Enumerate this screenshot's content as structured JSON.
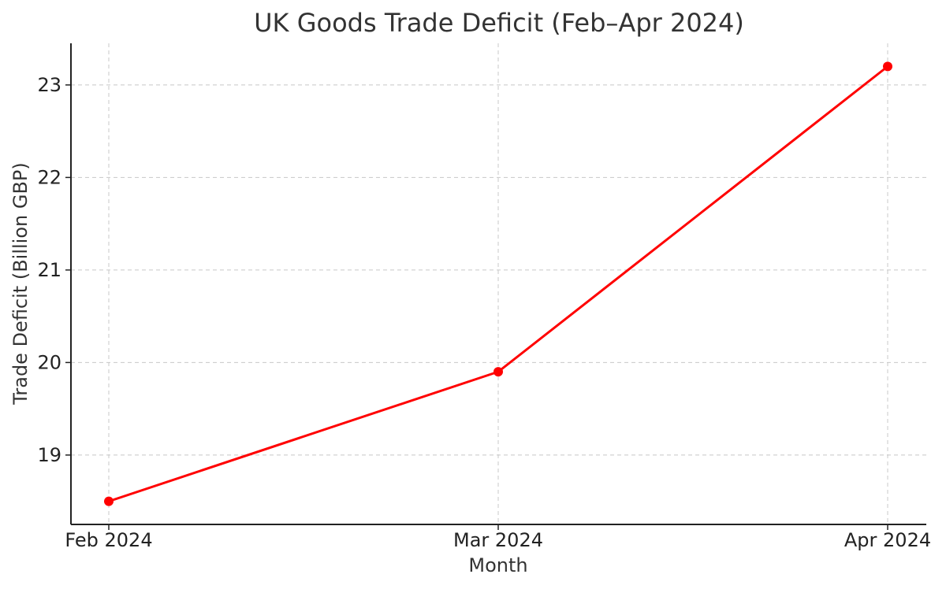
{
  "chart_data": {
    "type": "line",
    "title": "UK Goods Trade Deficit (Feb–Apr 2024)",
    "xlabel": "Month",
    "ylabel": "Trade Deficit (Billion GBP)",
    "categories": [
      "Feb 2024",
      "Mar 2024",
      "Apr 2024"
    ],
    "series": [
      {
        "values": [
          18.5,
          19.9,
          23.2
        ],
        "color": "#ff0000"
      }
    ],
    "ylim": [
      18.25,
      23.45
    ],
    "yticks": [
      19,
      20,
      21,
      22,
      23
    ],
    "grid": true,
    "legend": "none"
  }
}
